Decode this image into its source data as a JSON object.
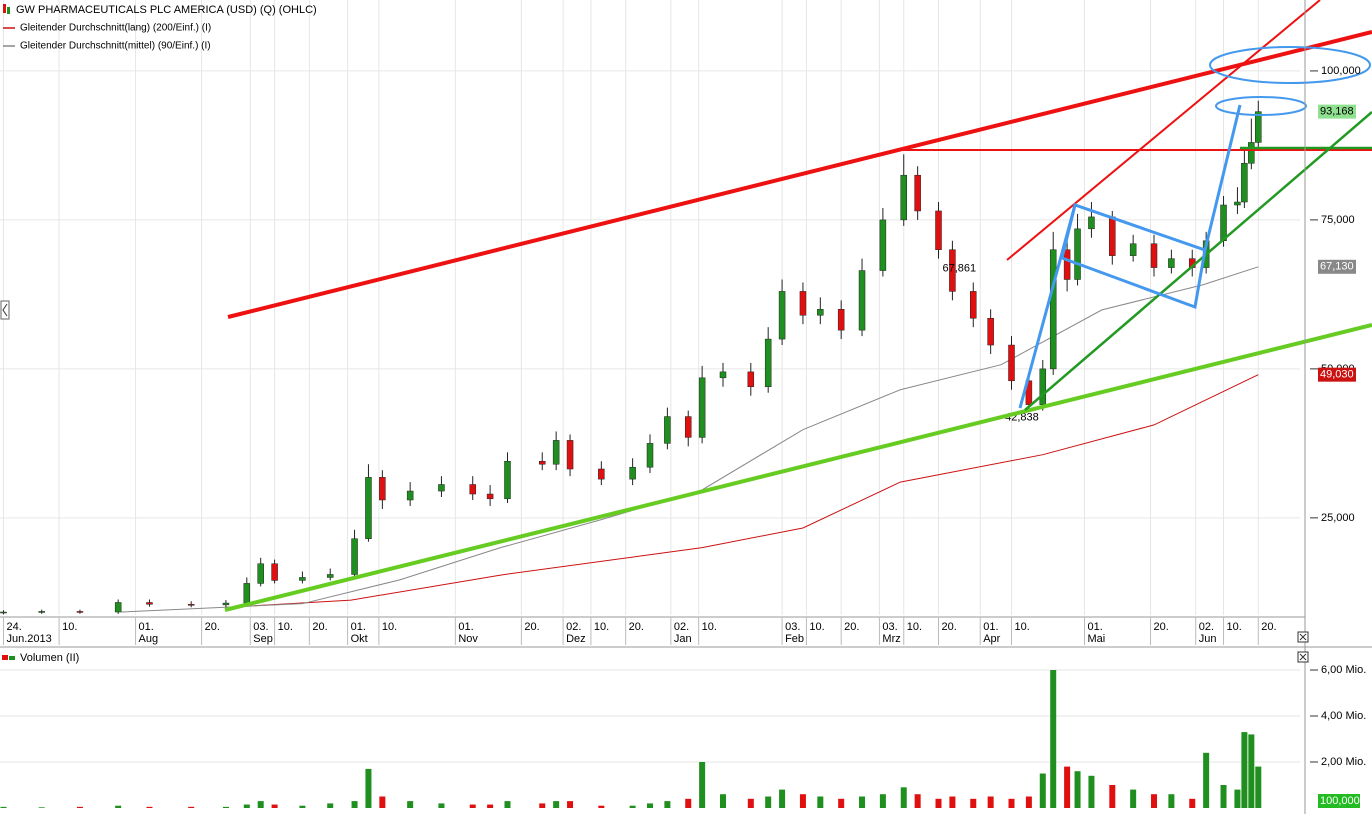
{
  "chart_data": {
    "type": "candlestick",
    "title": "GW PHARMACEUTICALS PLC AMERICA (USD) (Q) (OHLC)",
    "x": [
      "2013-06-24",
      "2013-07-05",
      "2013-07-16",
      "2013-07-27",
      "2013-08-05",
      "2013-08-17",
      "2013-08-27",
      "2013-09-02",
      "2013-09-06",
      "2013-09-10",
      "2013-09-18",
      "2013-09-26",
      "2013-10-03",
      "2013-10-07",
      "2013-10-11",
      "2013-10-19",
      "2013-10-28",
      "2013-11-06",
      "2013-11-11",
      "2013-11-16",
      "2013-11-26",
      "2013-11-30",
      "2013-12-04",
      "2013-12-13",
      "2013-12-22",
      "2013-12-27",
      "2014-01-01",
      "2014-01-07",
      "2014-01-11",
      "2014-01-17",
      "2014-01-25",
      "2014-01-30",
      "2014-02-03",
      "2014-02-09",
      "2014-02-14",
      "2014-02-20",
      "2014-02-26",
      "2014-03-04",
      "2014-03-10",
      "2014-03-14",
      "2014-03-20",
      "2014-03-24",
      "2014-03-30",
      "2014-04-04",
      "2014-04-10",
      "2014-04-15",
      "2014-04-19",
      "2014-04-22",
      "2014-04-26",
      "2014-04-29",
      "2014-05-03",
      "2014-05-09",
      "2014-05-15",
      "2014-05-21",
      "2014-05-26",
      "2014-06-01",
      "2014-06-05",
      "2014-06-10",
      "2014-06-14",
      "2014-06-16",
      "2014-06-18",
      "2014-06-20"
    ],
    "open": [
      9100,
      9200,
      9300,
      9200,
      10800,
      10500,
      10400,
      10700,
      14000,
      17300,
      14500,
      15000,
      15500,
      21500,
      31800,
      28000,
      29500,
      30600,
      29000,
      28200,
      34500,
      34000,
      38000,
      33200,
      31500,
      33500,
      37500,
      42000,
      38500,
      48500,
      49500,
      47000,
      55000,
      63000,
      59000,
      60000,
      56500,
      66500,
      75000,
      82500,
      76500,
      70000,
      63000,
      58500,
      54000,
      48000,
      44000,
      50000,
      70000,
      65000,
      73500,
      75500,
      69000,
      71000,
      67000,
      68500,
      67000,
      71500,
      77500,
      78000,
      84500,
      88000
    ],
    "high": [
      9500,
      9600,
      9600,
      11300,
      11300,
      11000,
      11200,
      15000,
      18300,
      18000,
      16000,
      16500,
      23000,
      34000,
      33000,
      31000,
      32000,
      32000,
      30500,
      36000,
      36000,
      39500,
      39000,
      34500,
      35000,
      39000,
      43500,
      43000,
      50500,
      51000,
      51000,
      57000,
      65000,
      64500,
      62000,
      61500,
      68500,
      77000,
      86000,
      84000,
      78000,
      71500,
      64500,
      60000,
      55500,
      49500,
      51500,
      73000,
      72000,
      76000,
      78000,
      76500,
      72500,
      72500,
      70000,
      70000,
      73000,
      79000,
      80500,
      87000,
      92000,
      95000
    ],
    "low": [
      8800,
      8900,
      8900,
      8900,
      10100,
      10000,
      10000,
      10300,
      13500,
      14000,
      14000,
      14500,
      15000,
      21000,
      26500,
      27000,
      28500,
      28000,
      27000,
      27500,
      33000,
      33000,
      32000,
      30500,
      30500,
      32500,
      36500,
      37000,
      37500,
      47000,
      45500,
      46000,
      54000,
      57500,
      57500,
      55000,
      55500,
      65500,
      74000,
      75000,
      68500,
      61500,
      57000,
      52500,
      46500,
      42838,
      43000,
      49000,
      63000,
      64000,
      72000,
      67500,
      68000,
      65500,
      66000,
      65500,
      66000,
      70500,
      76000,
      77000,
      83500,
      87000
    ],
    "close": [
      9200,
      9300,
      9200,
      10800,
      10500,
      10400,
      10700,
      14000,
      17300,
      14500,
      15000,
      15500,
      21500,
      31800,
      28000,
      29500,
      30600,
      29000,
      28200,
      34500,
      34000,
      38000,
      33200,
      31500,
      33500,
      37500,
      42000,
      38500,
      48500,
      49500,
      47000,
      55000,
      63000,
      59000,
      60000,
      56500,
      66500,
      75000,
      82500,
      76500,
      70000,
      63000,
      58500,
      54000,
      48000,
      44000,
      50000,
      70000,
      65000,
      73500,
      75500,
      69000,
      71000,
      67000,
      68500,
      67000,
      71500,
      77500,
      78000,
      84500,
      88000,
      93168
    ],
    "up_color": "#1f8f1f",
    "down_color": "#e01010",
    "last_label": {
      "value": 93168,
      "label": "93,168"
    },
    "xlim": [
      "2013-06-23",
      "2014-07-02"
    ],
    "xticks": [
      {
        "value": "2013-06-24",
        "label": "24.",
        "month": "Jun.2013"
      },
      {
        "value": "2013-07-10",
        "label": "10."
      },
      {
        "value": "2013-08-01",
        "label": "01.",
        "month": "Aug"
      },
      {
        "value": "2013-08-20",
        "label": "20."
      },
      {
        "value": "2013-09-03",
        "label": "03.",
        "month": "Sep"
      },
      {
        "value": "2013-09-10",
        "label": "10."
      },
      {
        "value": "2013-09-20",
        "label": "20."
      },
      {
        "value": "2013-10-01",
        "label": "01.",
        "month": "Okt"
      },
      {
        "value": "2013-10-10",
        "label": "10."
      },
      {
        "value": "2013-11-01",
        "label": "01.",
        "month": "Nov"
      },
      {
        "value": "2013-11-20",
        "label": "20."
      },
      {
        "value": "2013-12-02",
        "label": "02.",
        "month": "Dez"
      },
      {
        "value": "2013-12-10",
        "label": "10."
      },
      {
        "value": "2013-12-20",
        "label": "20."
      },
      {
        "value": "2014-01-02",
        "label": "02.",
        "month": "Jan"
      },
      {
        "value": "2014-01-10",
        "label": "10."
      },
      {
        "value": "2014-02-03",
        "label": "03.",
        "month": "Feb"
      },
      {
        "value": "2014-02-10",
        "label": "10."
      },
      {
        "value": "2014-02-20",
        "label": "20."
      },
      {
        "value": "2014-03-03",
        "label": "03.",
        "month": "Mrz"
      },
      {
        "value": "2014-03-10",
        "label": "10."
      },
      {
        "value": "2014-03-20",
        "label": "20."
      },
      {
        "value": "2014-04-01",
        "label": "01.",
        "month": "Apr"
      },
      {
        "value": "2014-04-10",
        "label": "10."
      },
      {
        "value": "2014-05-01",
        "label": "01.",
        "month": "Mai"
      },
      {
        "value": "2014-05-20",
        "label": "20."
      },
      {
        "value": "2014-06-02",
        "label": "02.",
        "month": "Jun"
      },
      {
        "value": "2014-06-10",
        "label": "10."
      },
      {
        "value": "2014-06-20",
        "label": "20."
      }
    ],
    "ylim": [
      8700,
      111900
    ],
    "yticks": [
      {
        "value": 25000,
        "label": "25,000"
      },
      {
        "value": 50000,
        "label": "50,000"
      },
      {
        "value": 75000,
        "label": "75,000"
      },
      {
        "value": 100000,
        "label": "100,000"
      }
    ],
    "moving_averages": [
      {
        "name": "Gleitender Durchschnitt(lang) (200/Einf.) (I)",
        "color": "#cc1111",
        "x": [
          "2013-08-28",
          "2013-10-02",
          "2013-11-14",
          "2014-01-11",
          "2014-02-09",
          "2014-03-09",
          "2014-04-19",
          "2014-05-21",
          "2014-06-20"
        ],
        "values": [
          10000,
          11200,
          15400,
          20000,
          23300,
          31000,
          35600,
          40600,
          49030
        ],
        "last_label": {
          "value": 49030,
          "label": "49,030"
        }
      },
      {
        "name": "Gleitender Durchschnitt(mittel) (90/Einf.) (I)",
        "color": "#888888",
        "x": [
          "2013-07-28",
          "2013-09-18",
          "2013-10-16",
          "2013-11-14",
          "2013-12-13",
          "2014-01-11",
          "2014-02-09",
          "2014-03-09",
          "2014-04-07",
          "2014-05-06",
          "2014-06-04",
          "2014-06-20"
        ],
        "values": [
          9200,
          10600,
          14600,
          20000,
          24700,
          29700,
          39800,
          46500,
          50700,
          59900,
          64100,
          67130
        ],
        "last_label": {
          "value": 67130,
          "label": "67,130"
        }
      }
    ],
    "annotations": [
      {
        "x": "2014-03-26",
        "value": 67861,
        "label": "67,861"
      },
      {
        "x": "2014-04-13",
        "value": 42838,
        "label": "42,838"
      }
    ],
    "volume": {
      "name": "Volumen (II)",
      "values": [
        0.05,
        0.03,
        0.05,
        0.1,
        0.05,
        0.05,
        0.05,
        0.15,
        0.3,
        0.15,
        0.1,
        0.2,
        0.3,
        1.7,
        0.5,
        0.3,
        0.2,
        0.15,
        0.15,
        0.3,
        0.2,
        0.3,
        0.3,
        0.1,
        0.1,
        0.2,
        0.3,
        0.4,
        2.0,
        0.6,
        0.4,
        0.5,
        0.8,
        0.6,
        0.5,
        0.4,
        0.5,
        0.6,
        0.9,
        0.6,
        0.4,
        0.5,
        0.4,
        0.5,
        0.4,
        0.5,
        1.5,
        6.0,
        1.8,
        1.6,
        1.4,
        1.0,
        0.8,
        0.6,
        0.6,
        0.4,
        2.4,
        1.0,
        0.8,
        3.3,
        3.2,
        1.8
      ],
      "ylim": [
        0,
        6.87
      ],
      "yticks": [
        {
          "value": 2,
          "label": "2,00 Mio."
        },
        {
          "value": 4,
          "label": "4,00 Mio."
        },
        {
          "value": 6,
          "label": "6,00 Mio."
        }
      ],
      "corner_label": "100,000"
    }
  }
}
